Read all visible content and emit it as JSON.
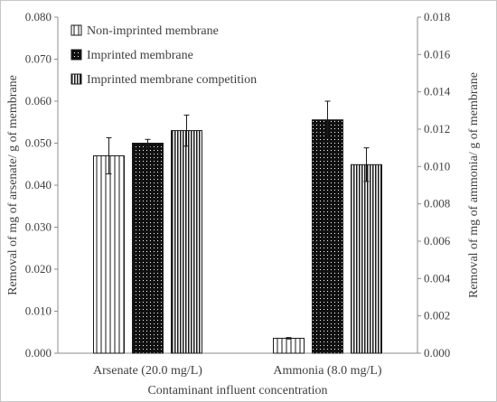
{
  "chart_data": {
    "type": "bar",
    "xlabel": "Contaminant influent concentration",
    "ylabel_left": "Removal of mg of arsenate/ g of membrane",
    "ylabel_right": "Removal of mg of ammonia/ g of membrane",
    "categories": [
      "Arsenate (20.0 mg/L)",
      "Ammonia (8.0 mg/L)"
    ],
    "category_axis": [
      "left",
      "right"
    ],
    "ylim_left": [
      0,
      0.08
    ],
    "ylim_right": [
      0,
      0.018
    ],
    "yticks_left": [
      "0.000",
      "0.010",
      "0.020",
      "0.030",
      "0.040",
      "0.050",
      "0.060",
      "0.070",
      "0.080"
    ],
    "yticks_right": [
      "0.000",
      "0.002",
      "0.004",
      "0.006",
      "0.008",
      "0.010",
      "0.012",
      "0.014",
      "0.016",
      "0.018"
    ],
    "legend_position": "top-left",
    "grid": false,
    "series": [
      {
        "name": "Non-imprinted membrane",
        "pattern": "vertical-stripes",
        "values": [
          0.047,
          0.0008
        ],
        "errors": [
          0.0043,
          4e-05
        ]
      },
      {
        "name": "Imprinted membrane",
        "pattern": "dark-dotted",
        "values": [
          0.05,
          0.0125
        ],
        "errors": [
          0.0009,
          0.001
        ]
      },
      {
        "name": "Imprinted membrane competition",
        "pattern": "dense-vertical-stripes",
        "values": [
          0.053,
          0.0101
        ],
        "errors": [
          0.0037,
          0.0009
        ]
      }
    ],
    "colors": {
      "bar_outline": "#1a1a1a",
      "text": "#404040",
      "axis": "#8c8c8c",
      "error_bar": "#1a1a1a"
    }
  }
}
